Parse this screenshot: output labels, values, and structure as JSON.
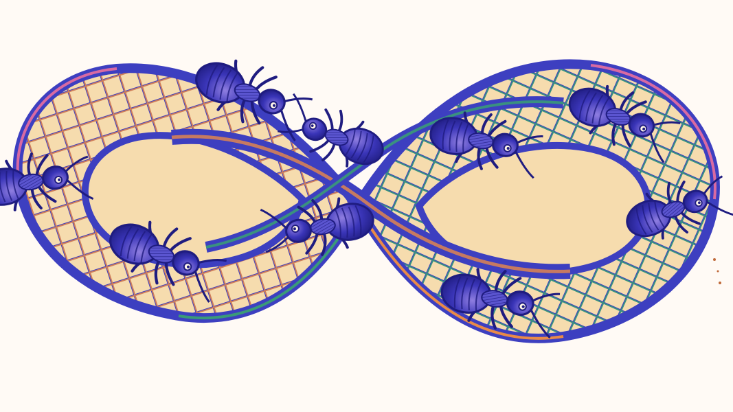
{
  "artwork": {
    "subject": "mobius-strip-lattice-with-ants",
    "ant_count": 9,
    "colors": {
      "background": "#fffaf5",
      "paper": "#f6dcae",
      "lattice_blue": "#3d3fc0",
      "lattice_orange": "#e98a48",
      "lattice_green": "#3a9a78",
      "lattice_pink": "#d86aa2",
      "ant_body": "#3a35b8",
      "ant_shadow": "#1f1c80",
      "ant_highlight": "#8f7ee0",
      "ant_eye": "#fff6e8"
    }
  }
}
